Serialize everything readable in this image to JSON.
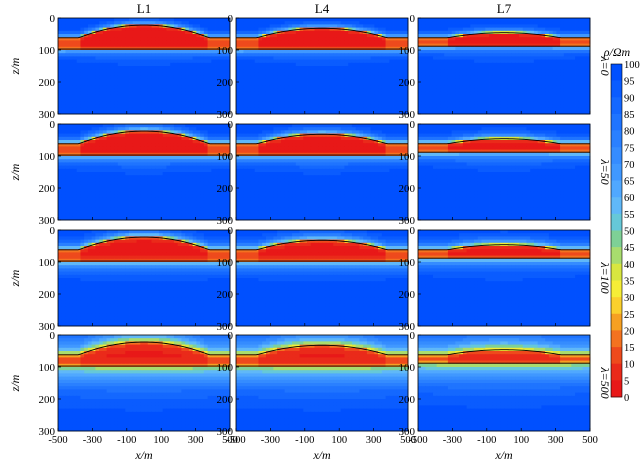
{
  "chart_data": {
    "type": "heatmap",
    "columns": [
      "L1",
      "L4",
      "L7"
    ],
    "rows": [
      "λ=0",
      "λ=50",
      "λ=100",
      "λ=500"
    ],
    "xlabel": "x/m",
    "ylabel": "z/m",
    "xlim": [
      -500,
      500
    ],
    "ylim": [
      0,
      300
    ],
    "xticks": [
      "-500",
      "-300",
      "-100",
      "100",
      "300",
      "500"
    ],
    "yticks": [
      "0",
      "100",
      "200",
      "300"
    ],
    "colorbar": {
      "label": "ρ/Ωm",
      "ticks": [
        "100",
        "95",
        "90",
        "85",
        "80",
        "75",
        "70",
        "65",
        "60",
        "55",
        "50",
        "45",
        "40",
        "35",
        "30",
        "25",
        "20",
        "15",
        "10",
        "5",
        "0"
      ],
      "colors": [
        "#0050ff",
        "#0a5cff",
        "#1468ff",
        "#1f74ff",
        "#2a80ff",
        "#358cff",
        "#4098ff",
        "#50a8ff",
        "#60b8f8",
        "#66c8d8",
        "#7ed096",
        "#a8dc6e",
        "#d8e640",
        "#f6ee36",
        "#fbd02c",
        "#f6a022",
        "#f47220",
        "#ee4a1c",
        "#ea2a1a",
        "#e81818"
      ]
    },
    "models": {
      "L1": {
        "top_depth_edge": 62,
        "top_depth_center": 22,
        "bottom_depth": 97,
        "half_width": 380
      },
      "L4": {
        "top_depth_edge": 62,
        "top_depth_center": 32,
        "bottom_depth": 97,
        "half_width": 380
      },
      "L7": {
        "top_depth_edge": 62,
        "top_depth_center": 46,
        "bottom_depth": 88,
        "half_width": 330
      }
    }
  }
}
